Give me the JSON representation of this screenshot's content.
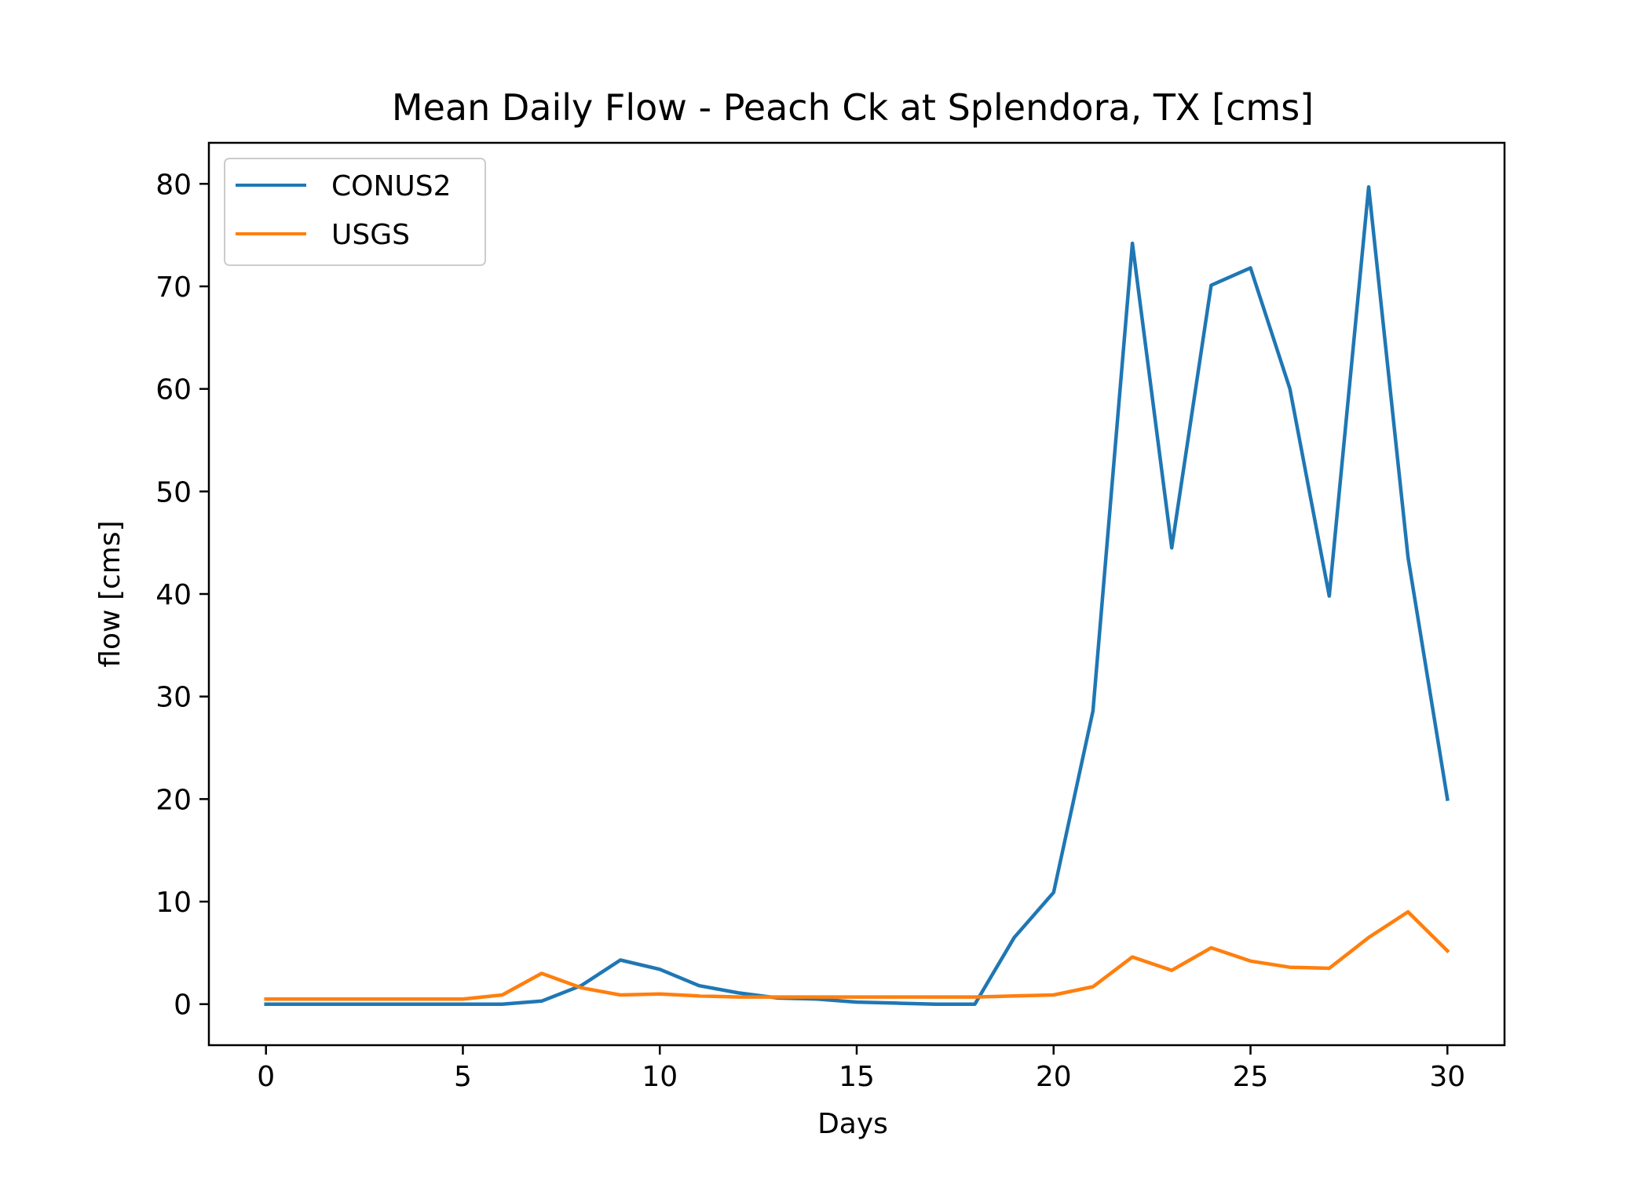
{
  "chart_data": {
    "type": "line",
    "title": "Mean Daily Flow - Peach Ck at Splendora, TX [cms]",
    "xlabel": "Days",
    "ylabel": "flow [cms]",
    "xlim": [
      -1.45,
      31.45
    ],
    "ylim": [
      -4,
      84
    ],
    "xticks": [
      0,
      5,
      10,
      15,
      20,
      25,
      30
    ],
    "yticks": [
      0,
      10,
      20,
      30,
      40,
      50,
      60,
      70,
      80
    ],
    "grid": false,
    "legend": "top-left",
    "x": [
      0,
      1,
      2,
      3,
      4,
      5,
      6,
      7,
      8,
      9,
      10,
      11,
      12,
      13,
      14,
      15,
      16,
      17,
      18,
      19,
      20,
      21,
      22,
      23,
      24,
      25,
      26,
      27,
      28,
      29,
      30
    ],
    "series": [
      {
        "name": "CONUS2",
        "color": "#1f77b4",
        "values": [
          0,
          0,
          0,
          0,
          0,
          0,
          0,
          0.3,
          1.8,
          4.3,
          3.4,
          1.8,
          1.1,
          0.6,
          0.5,
          0.2,
          0.1,
          0,
          0,
          6.5,
          10.9,
          28.6,
          74.2,
          44.5,
          70.1,
          71.8,
          60.0,
          39.8,
          79.7,
          43.6,
          20.0
        ]
      },
      {
        "name": "USGS",
        "color": "#ff7f0e",
        "values": [
          0.5,
          0.5,
          0.5,
          0.5,
          0.5,
          0.5,
          0.9,
          3.0,
          1.6,
          0.9,
          1.0,
          0.8,
          0.7,
          0.7,
          0.7,
          0.7,
          0.7,
          0.7,
          0.7,
          0.8,
          0.9,
          1.7,
          4.6,
          3.3,
          5.5,
          4.2,
          3.6,
          3.5,
          6.5,
          9.0,
          5.2
        ]
      }
    ]
  }
}
